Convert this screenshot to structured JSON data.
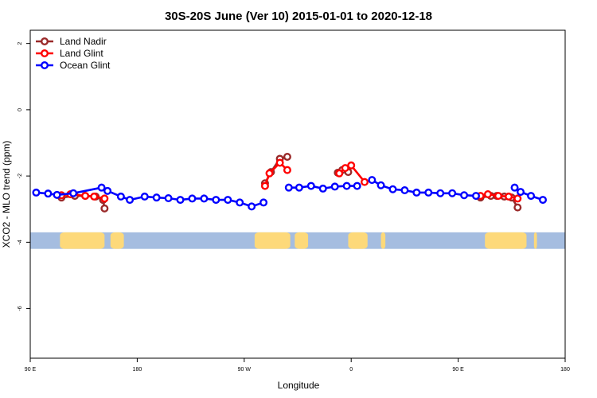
{
  "chart_data": {
    "type": "line",
    "title": "30S-20S June (Ver 10)   2015-01-01 to 2020-12-18",
    "xlabel": "Longitude",
    "ylabel": "XCO2 - MLO trend (ppm)",
    "xlim": [
      90,
      450
    ],
    "ylim": [
      -7.5,
      2.4
    ],
    "x_ticks": [
      {
        "value": 90,
        "label": "90 E"
      },
      {
        "value": 162,
        "label": "180"
      },
      {
        "value": 234,
        "label": "90 W"
      },
      {
        "value": 306,
        "label": "0"
      },
      {
        "value": 378,
        "label": "90 E"
      },
      {
        "value": 450,
        "label": "180"
      }
    ],
    "y_ticks": [
      {
        "value": 2,
        "label": "2"
      },
      {
        "value": 0,
        "label": "0"
      },
      {
        "value": -2,
        "label": "-2"
      },
      {
        "value": -4,
        "label": "-4"
      },
      {
        "value": -6,
        "label": "-6"
      }
    ],
    "legend_position": "top-left",
    "land_band": {
      "y_range": [
        -4.2,
        -3.7
      ],
      "ocean_color": "#a5bde0",
      "land_color": "#fdd97a",
      "land_segments": [
        [
          110,
          140
        ],
        [
          144,
          153
        ],
        [
          241,
          265
        ],
        [
          268,
          277
        ],
        [
          304,
          317
        ],
        [
          326,
          329
        ],
        [
          396,
          424
        ],
        [
          429,
          431
        ]
      ]
    },
    "series": [
      {
        "name": "Land Nadir",
        "color": "#9a2a2a",
        "segments": [
          [
            [
              111,
              -2.65
            ],
            [
              120,
              -2.6
            ],
            [
              127,
              -2.6
            ],
            [
              134,
              -2.62
            ],
            [
              139,
              -2.72
            ],
            [
              140,
              -2.98
            ]
          ],
          [
            [
              248,
              -2.22
            ],
            [
              252,
              -1.88
            ],
            [
              258,
              -1.48
            ],
            [
              263,
              -1.42
            ]
          ],
          [
            [
              297,
              -1.9
            ],
            [
              300,
              -1.82
            ],
            [
              304,
              -1.88
            ]
          ],
          [
            [
              393,
              -2.65
            ],
            [
              400,
              -2.6
            ],
            [
              404,
              -2.6
            ],
            [
              409,
              -2.62
            ],
            [
              414,
              -2.65
            ],
            [
              418,
              -2.95
            ]
          ]
        ]
      },
      {
        "name": "Land Glint",
        "color": "#ff0000",
        "segments": [
          [
            [
              111,
              -2.58
            ],
            [
              117,
              -2.55
            ],
            [
              127,
              -2.6
            ],
            [
              133,
              -2.62
            ],
            [
              140,
              -2.68
            ]
          ],
          [
            [
              248,
              -2.3
            ],
            [
              251,
              -1.92
            ],
            [
              258,
              -1.6
            ],
            [
              263,
              -1.82
            ]
          ],
          [
            [
              298,
              -1.92
            ],
            [
              302,
              -1.76
            ],
            [
              306,
              -1.68
            ],
            [
              315,
              -2.18
            ]
          ],
          [
            [
              393,
              -2.6
            ],
            [
              398,
              -2.55
            ],
            [
              405,
              -2.6
            ],
            [
              412,
              -2.62
            ],
            [
              418,
              -2.68
            ]
          ]
        ]
      },
      {
        "name": "Ocean Glint",
        "color": "#0000ff",
        "segments": [
          [
            [
              94,
              -2.5
            ],
            [
              102,
              -2.53
            ],
            [
              108,
              -2.57
            ],
            [
              119,
              -2.52
            ],
            [
              138,
              -2.35
            ]
          ],
          [
            [
              142,
              -2.45
            ],
            [
              151,
              -2.62
            ],
            [
              157,
              -2.72
            ],
            [
              167,
              -2.62
            ],
            [
              175,
              -2.65
            ],
            [
              183,
              -2.67
            ],
            [
              191,
              -2.72
            ],
            [
              199,
              -2.68
            ],
            [
              207,
              -2.68
            ],
            [
              215,
              -2.72
            ],
            [
              223,
              -2.72
            ],
            [
              231,
              -2.8
            ],
            [
              239,
              -2.92
            ],
            [
              247,
              -2.8
            ]
          ],
          [
            [
              264,
              -2.35
            ],
            [
              271,
              -2.35
            ],
            [
              279,
              -2.3
            ],
            [
              287,
              -2.38
            ],
            [
              295,
              -2.32
            ],
            [
              303,
              -2.3
            ],
            [
              310,
              -2.3
            ]
          ],
          [
            [
              320,
              -2.12
            ],
            [
              326,
              -2.28
            ],
            [
              334,
              -2.4
            ],
            [
              342,
              -2.43
            ],
            [
              350,
              -2.5
            ],
            [
              358,
              -2.5
            ],
            [
              366,
              -2.52
            ],
            [
              374,
              -2.52
            ],
            [
              382,
              -2.58
            ],
            [
              390,
              -2.6
            ]
          ],
          [
            [
              416,
              -2.35
            ],
            [
              420,
              -2.48
            ],
            [
              427,
              -2.6
            ],
            [
              435,
              -2.72
            ]
          ]
        ]
      }
    ]
  }
}
